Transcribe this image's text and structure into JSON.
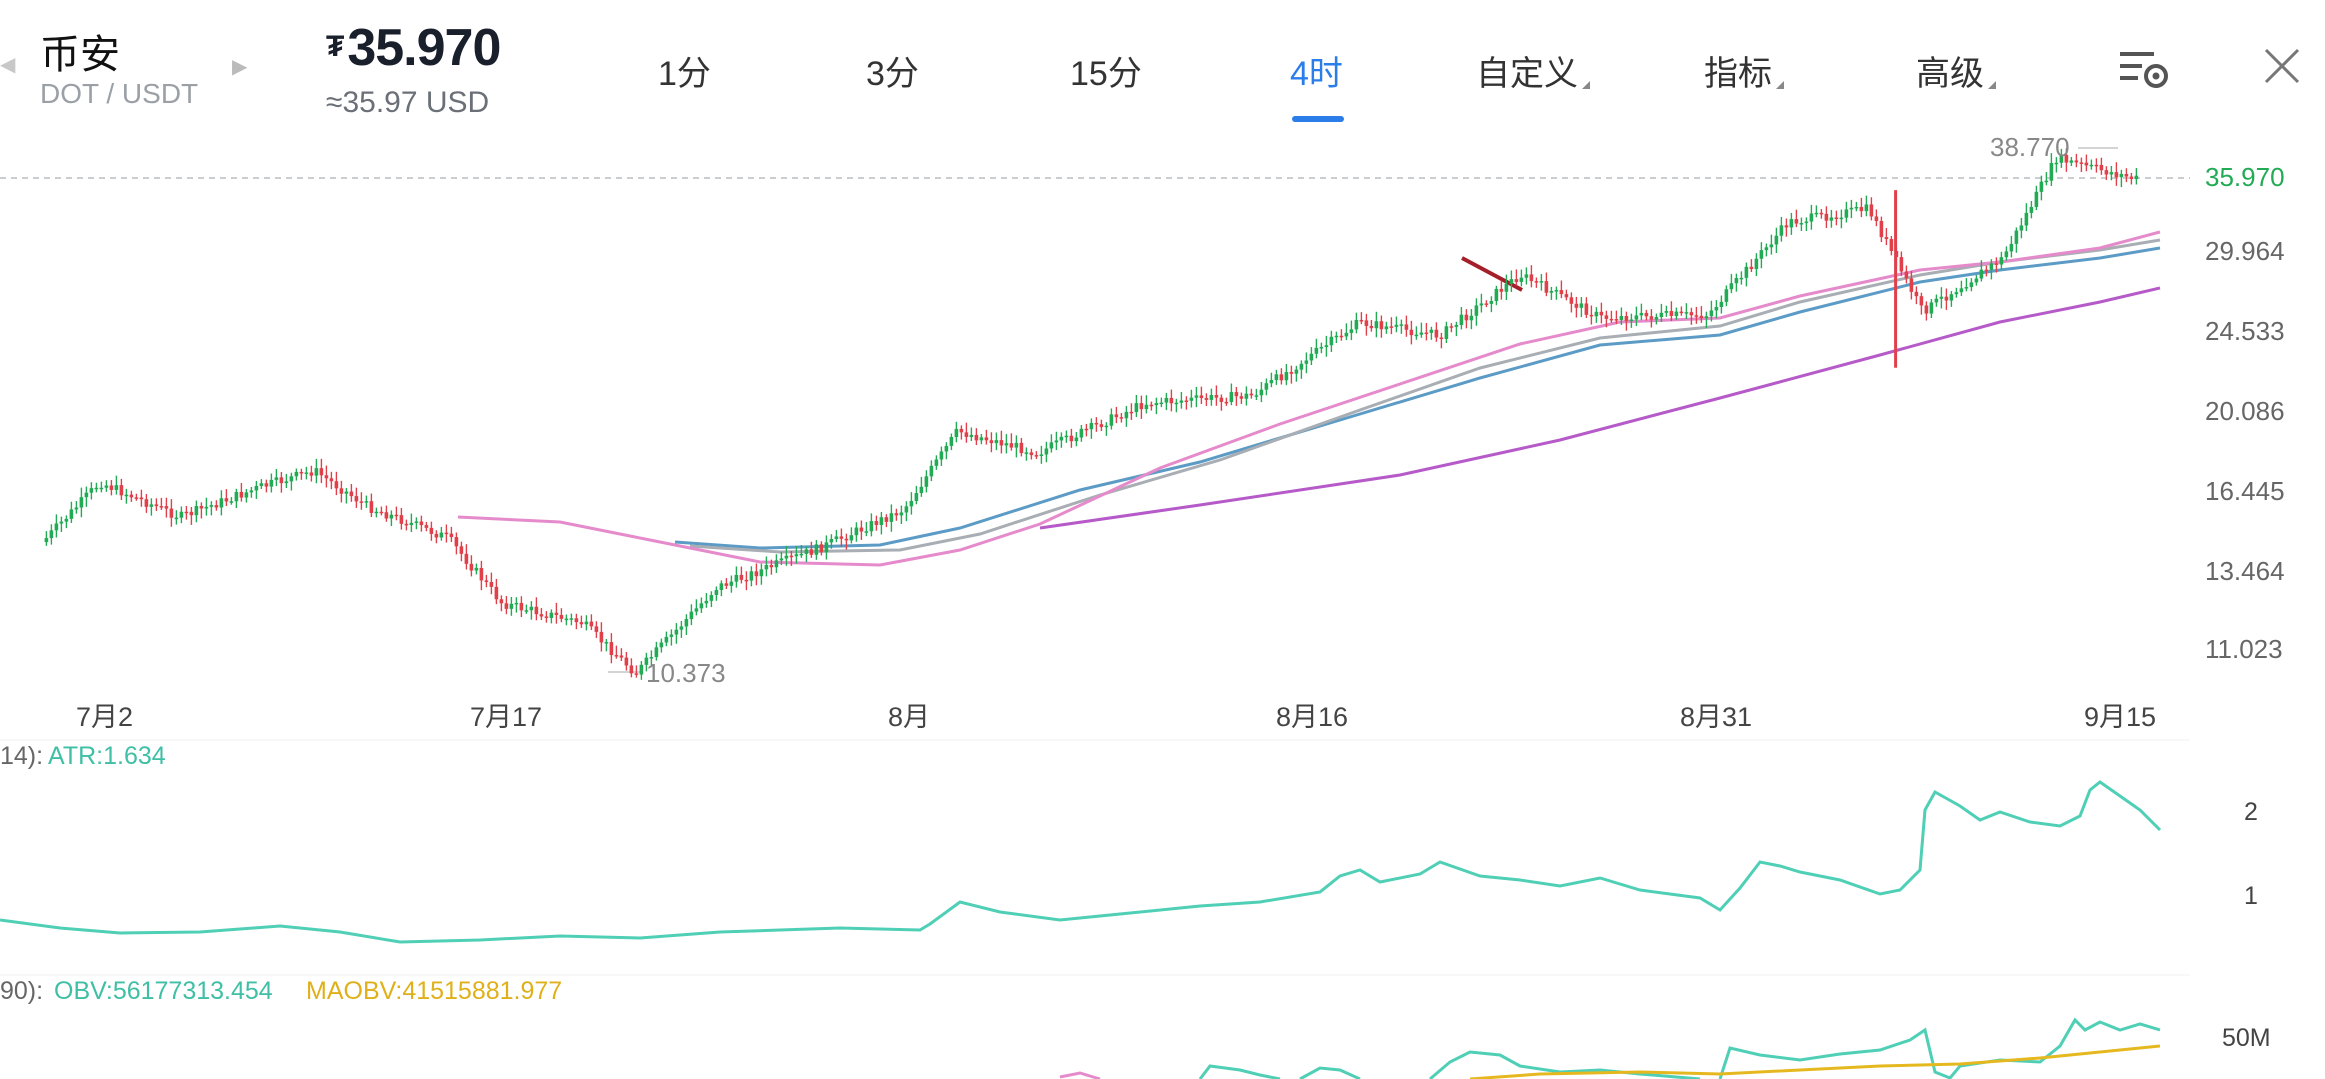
{
  "header": {
    "exchange_name": "币安",
    "pair": "DOT / USDT",
    "currency_symbol": "₮",
    "price": "35.970",
    "usd_value": "≈35.97 USD"
  },
  "timeframe_tabs": [
    {
      "label": "1分",
      "active": false,
      "has_menu": false
    },
    {
      "label": "3分",
      "active": false,
      "has_menu": false
    },
    {
      "label": "15分",
      "active": false,
      "has_menu": false
    },
    {
      "label": "4时",
      "active": true,
      "has_menu": false
    },
    {
      "label": "自定义",
      "active": false,
      "has_menu": true
    },
    {
      "label": "指标",
      "active": false,
      "has_menu": true
    },
    {
      "label": "高级",
      "active": false,
      "has_menu": true
    }
  ],
  "icons": {
    "settings": "chart-settings-icon",
    "close": "close-icon"
  },
  "colors": {
    "accent": "#2b7de9",
    "up": "#22aa55",
    "down": "#e0404a",
    "atr": "#4fcfb5",
    "obv": "#4fcfb5",
    "maobv": "#e6b820"
  },
  "chart": {
    "y_axis_labels": [
      "29.964",
      "24.533",
      "20.086",
      "16.445",
      "13.464",
      "11.023"
    ],
    "current_price_label": "35.970",
    "high_label": "38.770",
    "low_label": "10.373",
    "x_axis_labels": [
      "7月2",
      "7月17",
      "8月",
      "8月16",
      "8月31",
      "9月15"
    ]
  },
  "atr_panel": {
    "prefix": "14):",
    "label": "ATR:1.634",
    "axis_labels": [
      "2",
      "1"
    ]
  },
  "obv_panel": {
    "prefix": "90):",
    "obv_label": "OBV:56177313.454",
    "maobv_label": "MAOBV:41515881.977",
    "axis_label": "50M"
  },
  "chart_data": {
    "type": "candlestick",
    "pair": "DOT/USDT",
    "timeframe": "4时",
    "y_scale": "log",
    "x_ticks": [
      "7月2",
      "7月17",
      "8月",
      "8月16",
      "8月31",
      "9月15"
    ],
    "y_ticks": [
      11.023,
      13.464,
      16.445,
      20.086,
      24.533,
      29.964
    ],
    "last_price": 35.97,
    "marked_high": 38.77,
    "marked_low": 10.373,
    "close_path": [
      {
        "date": "6-30",
        "close": 14.6
      },
      {
        "date": "7-02",
        "close": 16.8
      },
      {
        "date": "7-05",
        "close": 15.4
      },
      {
        "date": "7-08",
        "close": 16.6
      },
      {
        "date": "7-10",
        "close": 17.3
      },
      {
        "date": "7-12",
        "close": 15.8
      },
      {
        "date": "7-15",
        "close": 14.6
      },
      {
        "date": "7-17",
        "close": 12.4
      },
      {
        "date": "7-20",
        "close": 11.8
      },
      {
        "date": "7-22",
        "close": 10.4
      },
      {
        "date": "7-25",
        "close": 12.9
      },
      {
        "date": "7-29",
        "close": 14.3
      },
      {
        "date": "8-01",
        "close": 15.7
      },
      {
        "date": "8-03",
        "close": 19.1
      },
      {
        "date": "8-06",
        "close": 18.1
      },
      {
        "date": "8-10",
        "close": 20.5
      },
      {
        "date": "8-14",
        "close": 20.9
      },
      {
        "date": "8-18",
        "close": 25.1
      },
      {
        "date": "8-21",
        "close": 24.3
      },
      {
        "date": "8-24",
        "close": 28.3
      },
      {
        "date": "8-27",
        "close": 25.4
      },
      {
        "date": "8-31",
        "close": 25.6
      },
      {
        "date": "9-03",
        "close": 32.3
      },
      {
        "date": "9-06",
        "close": 33.4
      },
      {
        "date": "9-08",
        "close": 25.8
      },
      {
        "date": "9-11",
        "close": 29.5
      },
      {
        "date": "9-13",
        "close": 37.9
      },
      {
        "date": "9-16",
        "close": 35.97
      }
    ],
    "atr": {
      "last": 1.634,
      "axis_ticks": [
        1,
        2
      ]
    },
    "obv": {
      "obv_last": 56177313.454,
      "maobv_last": 41515881.977,
      "axis_ticks": [
        "50M"
      ]
    }
  }
}
